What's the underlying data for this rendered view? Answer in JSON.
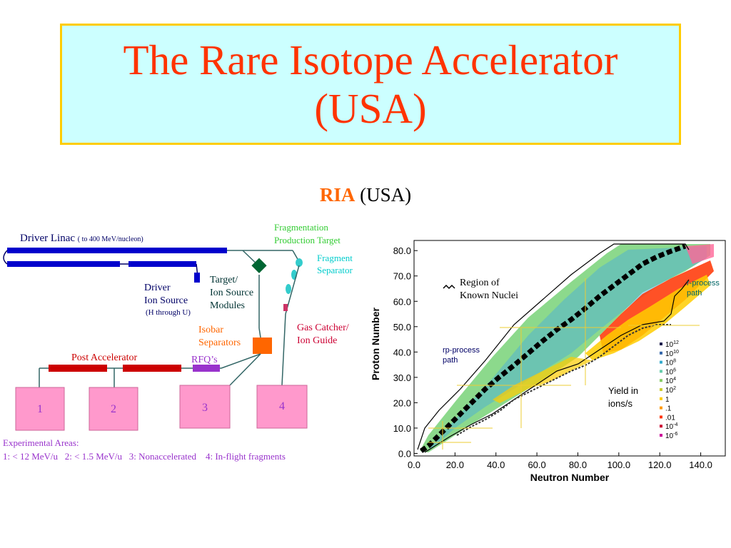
{
  "title": {
    "line1": "The Rare Isotope Accelerator",
    "line2": "(USA)"
  },
  "subtitle": {
    "ria": "RIA",
    "rest": " (USA)"
  },
  "diagram": {
    "driver_linac": "Driver Linac",
    "driver_linac_note": "( to 400 MeV/nucleon)",
    "frag_target_1": "Fragmentation",
    "frag_target_2": "Production Target",
    "frag_sep_1": "Fragment",
    "frag_sep_2": "Separator",
    "target_1": "Target/",
    "target_2": "Ion Source",
    "target_3": "Modules",
    "driver_ion_1": "Driver",
    "driver_ion_2": "Ion Source",
    "driver_ion_3": "(H through U)",
    "isobar_1": "Isobar",
    "isobar_2": "Separators",
    "gas_1": "Gas Catcher/",
    "gas_2": "Ion Guide",
    "post_acc": "Post Accelerator",
    "rfq": "RFQ’s",
    "areas": [
      "1",
      "2",
      "3",
      "4"
    ],
    "exp_title": "Experimental Areas:",
    "exp_line": "1: < 12 MeV/u   2: < 1.5 MeV/u   3: Nonaccelerated    4: In-flight fragments"
  },
  "chart_data": {
    "type": "heatmap",
    "xlabel": "Neutron Number",
    "ylabel": "Proton Number",
    "xticks": [
      "0.0",
      "20.0",
      "40.0",
      "60.0",
      "80.0",
      "100.0",
      "120.0",
      "140.0"
    ],
    "yticks": [
      "0.0",
      "10.0",
      "20.0",
      "30.0",
      "40.0",
      "50.0",
      "60.0",
      "70.0",
      "80.0"
    ],
    "xlim": [
      0,
      152
    ],
    "ylim": [
      -1,
      84
    ],
    "annotations": {
      "known_1": "Region of",
      "known_2": "Known Nuclei",
      "rp_1": "rp-process",
      "rp_2": "path",
      "r_1": "r-process",
      "r_2": "path",
      "yield_1": "Yield in",
      "yield_2": "ions/s"
    },
    "legend": [
      "10",
      "10",
      "10",
      "10",
      "10",
      "10",
      "1",
      ".1",
      ".01",
      "10",
      "10"
    ],
    "legend_exp": [
      "12",
      "10",
      "8",
      "6",
      "4",
      "2",
      "",
      "",
      "",
      "-4",
      "-6"
    ],
    "legend_colors": [
      "#1a1a4d",
      "#3366aa",
      "#33aacc",
      "#66ccaa",
      "#88cc66",
      "#cccc33",
      "#ffcc00",
      "#ff9900",
      "#ff3300",
      "#cc0033",
      "#cc0099"
    ]
  }
}
